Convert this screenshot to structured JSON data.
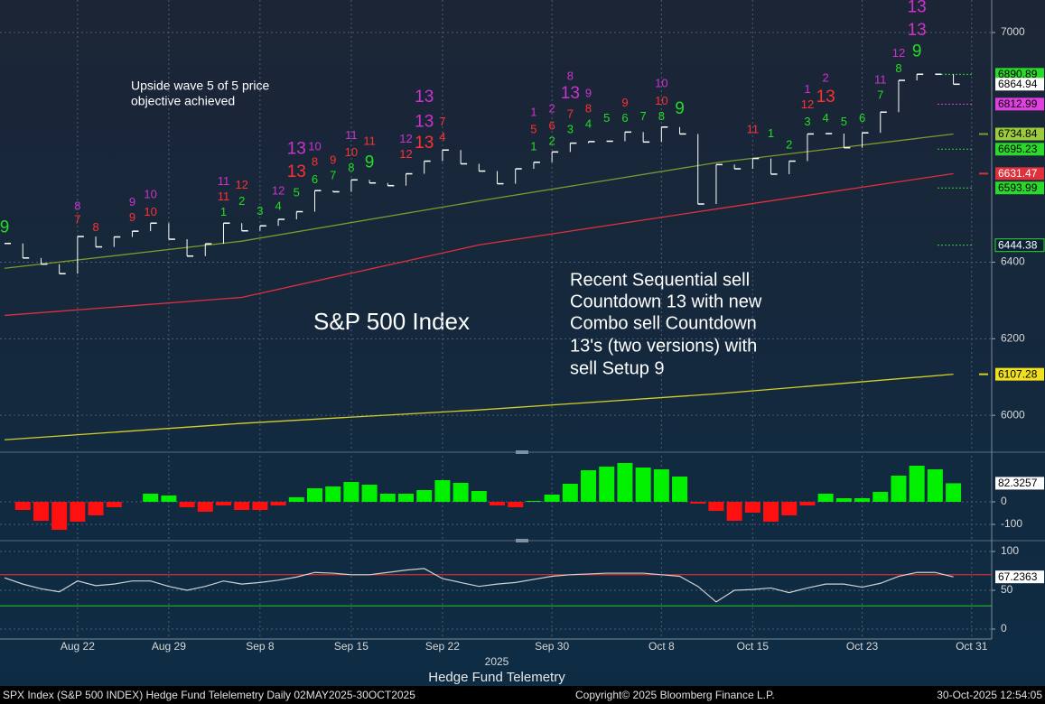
{
  "chart_data": [
    {
      "type": "price",
      "title": "S&P 500 Index",
      "objective_note": [
        "Upside wave 5 of 5 price",
        "objective achieved"
      ],
      "note_lines": [
        "Recent Sequential sell",
        "Countdown 13 with new",
        "Combo sell Countdown",
        "13's (two versions) with",
        "sell Setup 9"
      ],
      "ylim": [
        5906,
        7085
      ],
      "yticks": [
        6000,
        6200,
        6400,
        7000
      ],
      "grid": true,
      "color": "#ffffff",
      "values": [
        6449,
        6411,
        6395,
        6370,
        6467,
        6440,
        6466,
        6481,
        6502,
        6460,
        6416,
        6448,
        6502,
        6482,
        6495,
        6512,
        6532,
        6587,
        6584,
        6615,
        6607,
        6600,
        6631,
        6664,
        6693,
        6657,
        6638,
        6605,
        6644,
        6661,
        6688,
        6711,
        6715,
        6716,
        6740,
        6714,
        6753,
        6735,
        6552,
        6655,
        6644,
        6671,
        6630,
        6664,
        6735,
        6736,
        6699,
        6738,
        6792,
        6875,
        6891,
        6891,
        6864.94
      ],
      "moving_averages": [
        {
          "color": "#7d9a2e",
          "label_color": "#9ccc3c",
          "x": [
            0,
            13,
            26,
            39,
            52
          ],
          "values": [
            6384,
            6455,
            6560,
            6660,
            6734.84
          ]
        },
        {
          "color": "#e0303c",
          "label_color": "#e0303c",
          "x": [
            0,
            13,
            26,
            39,
            52
          ],
          "values": [
            6261,
            6308,
            6445,
            6539,
            6631.47
          ]
        },
        {
          "color": "#d6cf2a",
          "label_color": "#f0e020",
          "x": [
            0,
            13,
            26,
            39,
            52
          ],
          "values": [
            5936,
            5979,
            6014,
            6056,
            6107.28
          ]
        }
      ],
      "levels": [
        {
          "value": 6890.89,
          "color": "#2bd92b"
        },
        {
          "value": 6812.99,
          "color": "#e040e0"
        },
        {
          "value": 6695.23,
          "color": "#2bd92b"
        },
        {
          "value": 6593.99,
          "color": "#2bd92b"
        },
        {
          "value": 6444.38,
          "color": "#2bd92b",
          "style": "outline"
        }
      ],
      "setup_counts": [
        {
          "text": "9",
          "x": 0,
          "y": 6490,
          "color": "#22dd22",
          "size": "large"
        },
        {
          "text": "8",
          "x": 4,
          "y": 6545,
          "color": "#cc33cc",
          "size": "small"
        },
        {
          "text": "7",
          "x": 4,
          "y": 6510,
          "color": "#ff3030",
          "size": "small"
        },
        {
          "text": "8",
          "x": 5,
          "y": 6490,
          "color": "#ff3030",
          "size": "small"
        },
        {
          "text": "9",
          "x": 7,
          "y": 6555,
          "color": "#cc33cc",
          "size": "small"
        },
        {
          "text": "9",
          "x": 7,
          "y": 6515,
          "color": "#ff3030",
          "size": "small"
        },
        {
          "text": "10",
          "x": 8,
          "y": 6575,
          "color": "#cc33cc",
          "size": "small"
        },
        {
          "text": "10",
          "x": 8,
          "y": 6530,
          "color": "#ff3030",
          "size": "small"
        },
        {
          "text": "11",
          "x": 12,
          "y": 6610,
          "color": "#cc33cc",
          "size": "small"
        },
        {
          "text": "11",
          "x": 12,
          "y": 6570,
          "color": "#ff3030",
          "size": "small"
        },
        {
          "text": "12",
          "x": 13,
          "y": 6600,
          "color": "#ff3030",
          "size": "small"
        },
        {
          "text": "1",
          "x": 12,
          "y": 6530,
          "color": "#22dd22",
          "size": "small"
        },
        {
          "text": "2",
          "x": 13,
          "y": 6558,
          "color": "#22dd22",
          "size": "small"
        },
        {
          "text": "3",
          "x": 14,
          "y": 6532,
          "color": "#22dd22",
          "size": "small"
        },
        {
          "text": "4",
          "x": 15,
          "y": 6545,
          "color": "#22dd22",
          "size": "small"
        },
        {
          "text": "12",
          "x": 15,
          "y": 6585,
          "color": "#cc33cc",
          "size": "small"
        },
        {
          "text": "5",
          "x": 16,
          "y": 6580,
          "color": "#22dd22",
          "size": "small"
        },
        {
          "text": "13",
          "x": 16,
          "y": 6695,
          "color": "#cc33cc",
          "size": "large"
        },
        {
          "text": "13",
          "x": 16,
          "y": 6635,
          "color": "#ff3030",
          "size": "large"
        },
        {
          "text": "10",
          "x": 17,
          "y": 6700,
          "color": "#cc33cc",
          "size": "small"
        },
        {
          "text": "8",
          "x": 17,
          "y": 6660,
          "color": "#ff3030",
          "size": "small"
        },
        {
          "text": "6",
          "x": 17,
          "y": 6615,
          "color": "#22dd22",
          "size": "small"
        },
        {
          "text": "9",
          "x": 18,
          "y": 6665,
          "color": "#ff3030",
          "size": "small"
        },
        {
          "text": "7",
          "x": 18,
          "y": 6625,
          "color": "#22dd22",
          "size": "small"
        },
        {
          "text": "11",
          "x": 19,
          "y": 6730,
          "color": "#cc33cc",
          "size": "small"
        },
        {
          "text": "10",
          "x": 19,
          "y": 6685,
          "color": "#ff3030",
          "size": "small"
        },
        {
          "text": "8",
          "x": 19,
          "y": 6645,
          "color": "#22dd22",
          "size": "small"
        },
        {
          "text": "11",
          "x": 20,
          "y": 6715,
          "color": "#ff3030",
          "size": "small"
        },
        {
          "text": "9",
          "x": 20,
          "y": 6660,
          "color": "#22dd22",
          "size": "large"
        },
        {
          "text": "12",
          "x": 22,
          "y": 6720,
          "color": "#cc33cc",
          "size": "small"
        },
        {
          "text": "12",
          "x": 22,
          "y": 6680,
          "color": "#ff3030",
          "size": "small"
        },
        {
          "text": "13",
          "x": 23,
          "y": 6830,
          "color": "#cc33cc",
          "size": "large"
        },
        {
          "text": "13",
          "x": 23,
          "y": 6765,
          "color": "#cc33cc",
          "size": "large"
        },
        {
          "text": "7",
          "x": 24,
          "y": 6765,
          "color": "#ff3030",
          "size": "small"
        },
        {
          "text": "13",
          "x": 23,
          "y": 6710,
          "color": "#ff3030",
          "size": "large"
        },
        {
          "text": "4",
          "x": 24,
          "y": 6725,
          "color": "#ff3030",
          "size": "small"
        },
        {
          "text": "1",
          "x": 29,
          "y": 6790,
          "color": "#cc33cc",
          "size": "small"
        },
        {
          "text": "5",
          "x": 29,
          "y": 6745,
          "color": "#ff3030",
          "size": "small"
        },
        {
          "text": "1",
          "x": 29,
          "y": 6700,
          "color": "#22dd22",
          "size": "small"
        },
        {
          "text": "2",
          "x": 30,
          "y": 6800,
          "color": "#cc33cc",
          "size": "small"
        },
        {
          "text": "6",
          "x": 30,
          "y": 6755,
          "color": "#ff3030",
          "size": "small"
        },
        {
          "text": "2",
          "x": 30,
          "y": 6715,
          "color": "#22dd22",
          "size": "small"
        },
        {
          "text": "8",
          "x": 31,
          "y": 6885,
          "color": "#cc33cc",
          "size": "small"
        },
        {
          "text": "13",
          "x": 31,
          "y": 6840,
          "color": "#cc33cc",
          "size": "large"
        },
        {
          "text": "7",
          "x": 31,
          "y": 6785,
          "color": "#ff3030",
          "size": "small"
        },
        {
          "text": "3",
          "x": 31,
          "y": 6745,
          "color": "#22dd22",
          "size": "small"
        },
        {
          "text": "9",
          "x": 32,
          "y": 6840,
          "color": "#cc33cc",
          "size": "small"
        },
        {
          "text": "8",
          "x": 32,
          "y": 6800,
          "color": "#ff3030",
          "size": "small"
        },
        {
          "text": "4",
          "x": 32,
          "y": 6760,
          "color": "#22dd22",
          "size": "small"
        },
        {
          "text": "5",
          "x": 33,
          "y": 6775,
          "color": "#22dd22",
          "size": "small"
        },
        {
          "text": "9",
          "x": 34,
          "y": 6815,
          "color": "#ff3030",
          "size": "small"
        },
        {
          "text": "6",
          "x": 34,
          "y": 6775,
          "color": "#22dd22",
          "size": "small"
        },
        {
          "text": "7",
          "x": 35,
          "y": 6780,
          "color": "#22dd22",
          "size": "small"
        },
        {
          "text": "10",
          "x": 36,
          "y": 6865,
          "color": "#cc33cc",
          "size": "small"
        },
        {
          "text": "10",
          "x": 36,
          "y": 6820,
          "color": "#ff3030",
          "size": "small"
        },
        {
          "text": "8",
          "x": 36,
          "y": 6780,
          "color": "#22dd22",
          "size": "small"
        },
        {
          "text": "9",
          "x": 37,
          "y": 6800,
          "color": "#22dd22",
          "size": "large"
        },
        {
          "text": "11",
          "x": 41,
          "y": 6745,
          "color": "#ff3030",
          "size": "small"
        },
        {
          "text": "1",
          "x": 42,
          "y": 6735,
          "color": "#22dd22",
          "size": "small"
        },
        {
          "text": "2",
          "x": 43,
          "y": 6705,
          "color": "#22dd22",
          "size": "small"
        },
        {
          "text": "1",
          "x": 44,
          "y": 6850,
          "color": "#cc33cc",
          "size": "small"
        },
        {
          "text": "12",
          "x": 44,
          "y": 6810,
          "color": "#ff3030",
          "size": "small"
        },
        {
          "text": "3",
          "x": 44,
          "y": 6765,
          "color": "#22dd22",
          "size": "small"
        },
        {
          "text": "2",
          "x": 45,
          "y": 6880,
          "color": "#cc33cc",
          "size": "small"
        },
        {
          "text": "13",
          "x": 45,
          "y": 6830,
          "color": "#ff3030",
          "size": "large"
        },
        {
          "text": "4",
          "x": 45,
          "y": 6775,
          "color": "#22dd22",
          "size": "small"
        },
        {
          "text": "5",
          "x": 46,
          "y": 6765,
          "color": "#22dd22",
          "size": "small"
        },
        {
          "text": "6",
          "x": 47,
          "y": 6775,
          "color": "#22dd22",
          "size": "small"
        },
        {
          "text": "11",
          "x": 48,
          "y": 6875,
          "color": "#cc33cc",
          "size": "small"
        },
        {
          "text": "7",
          "x": 48,
          "y": 6835,
          "color": "#22dd22",
          "size": "small"
        },
        {
          "text": "12",
          "x": 49,
          "y": 6945,
          "color": "#cc33cc",
          "size": "small"
        },
        {
          "text": "8",
          "x": 49,
          "y": 6905,
          "color": "#22dd22",
          "size": "small"
        },
        {
          "text": "13",
          "x": 50,
          "y": 7065,
          "color": "#cc33cc",
          "size": "large"
        },
        {
          "text": "13",
          "x": 50,
          "y": 7005,
          "color": "#cc33cc",
          "size": "large"
        },
        {
          "text": "9",
          "x": 50,
          "y": 6950,
          "color": "#22dd22",
          "size": "large"
        }
      ]
    },
    {
      "type": "bar",
      "ylim": [
        -164,
        204
      ],
      "yticks": [
        -100,
        0
      ],
      "grid": true,
      "positive_color": "#00f000",
      "negative_color": "#ff1010",
      "values": [
        null,
        -36,
        -84,
        -124,
        -88,
        -60,
        -24,
        0,
        36,
        28,
        -24,
        -44,
        -16,
        -36,
        -36,
        -16,
        20,
        60,
        68,
        88,
        76,
        36,
        36,
        52,
        96,
        84,
        48,
        -16,
        -24,
        4,
        32,
        80,
        140,
        156,
        172,
        152,
        144,
        112,
        -8,
        -40,
        -84,
        -48,
        -88,
        -60,
        -16,
        36,
        16,
        16,
        44,
        116,
        160,
        144,
        82.3257
      ]
    },
    {
      "type": "line",
      "ylim": [
        -9.3,
        109.3
      ],
      "yticks": [
        0,
        50,
        100
      ],
      "grid": true,
      "color": "#d0d0d0",
      "reference_lines": [
        {
          "value": 70,
          "color": "#ff3030"
        },
        {
          "value": 30,
          "color": "#22cc22"
        }
      ],
      "values": [
        66,
        58,
        52,
        48,
        62,
        56,
        58,
        62,
        62,
        55,
        50,
        55,
        62,
        58,
        60,
        63,
        67,
        73,
        72,
        70,
        70,
        73,
        76,
        78,
        65,
        60,
        55,
        58,
        60,
        64,
        68,
        70,
        71,
        72,
        72,
        72,
        70,
        68,
        55,
        35,
        50,
        51,
        53,
        47,
        53,
        58,
        58,
        54,
        59,
        68,
        73,
        73,
        67.2363
      ],
      "xlim": [
        -0.25,
        54.1
      ],
      "xticks": [
        {
          "value": 4,
          "label": "Aug 22"
        },
        {
          "value": 9,
          "label": "Aug 29"
        },
        {
          "value": 14,
          "label": "Sep 8"
        },
        {
          "value": 19,
          "label": "Sep 15"
        },
        {
          "value": 24,
          "label": "Sep 22"
        },
        {
          "value": 30,
          "label": "Sep 30"
        },
        {
          "value": 36,
          "label": "Oct 8"
        },
        {
          "value": 41,
          "label": "Oct 15"
        },
        {
          "value": 47,
          "label": "Oct 23"
        },
        {
          "value": 53,
          "label": "Oct 31"
        }
      ],
      "year_label": "2025",
      "xlabel": "Hedge Fund Telemetry"
    }
  ],
  "footer": {
    "left": "SPX Index (S&P 500 INDEX) Hedge Fund Telelemetry Daily 02MAY2025-30OCT2025",
    "center": "Copyright© 2025 Bloomberg Finance L.P.",
    "right": "30-Oct-2025 12:54:05"
  }
}
